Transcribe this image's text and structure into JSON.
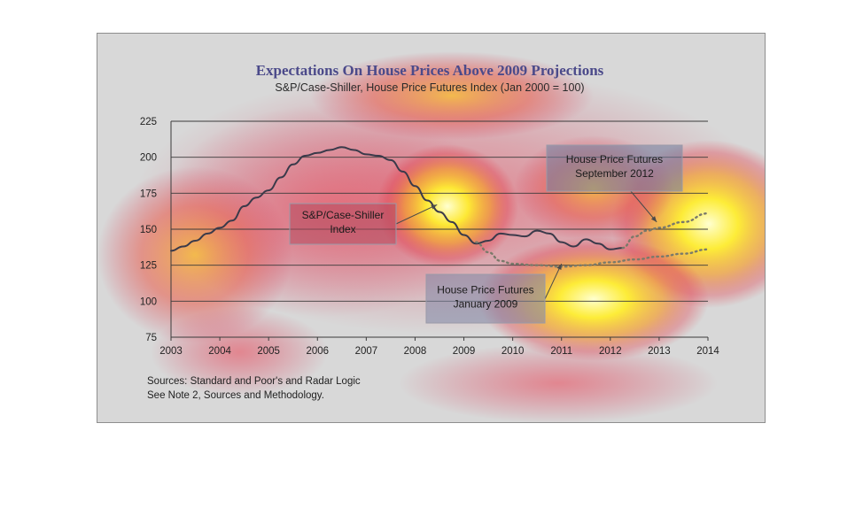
{
  "chart_data": {
    "type": "line",
    "title": "Expectations On House Prices Above 2009 Projections",
    "subtitle": "S&P/Case-Shiller, House Price Futures Index (Jan 2000 = 100)",
    "xlim": [
      2003,
      2014
    ],
    "ylim": [
      75,
      225
    ],
    "x_ticks": [
      "2003",
      "2004",
      "2005",
      "2006",
      "2007",
      "2008",
      "2009",
      "2010",
      "2011",
      "2012",
      "2013",
      "2014"
    ],
    "y_ticks": [
      "75",
      "100",
      "125",
      "150",
      "175",
      "200",
      "225"
    ],
    "grid": "horizontal",
    "series": [
      {
        "name": "S&P/Case-Shiller Index",
        "style": "solid",
        "color": "#3a3a4a",
        "points": [
          [
            2003.0,
            135
          ],
          [
            2003.25,
            138
          ],
          [
            2003.5,
            142
          ],
          [
            2003.75,
            147
          ],
          [
            2004.0,
            151
          ],
          [
            2004.25,
            156
          ],
          [
            2004.5,
            166
          ],
          [
            2004.75,
            172
          ],
          [
            2005.0,
            177
          ],
          [
            2005.25,
            186
          ],
          [
            2005.5,
            195
          ],
          [
            2005.75,
            201
          ],
          [
            2006.0,
            203
          ],
          [
            2006.25,
            205
          ],
          [
            2006.5,
            207
          ],
          [
            2006.75,
            205
          ],
          [
            2007.0,
            202
          ],
          [
            2007.25,
            201
          ],
          [
            2007.5,
            198
          ],
          [
            2007.75,
            190
          ],
          [
            2008.0,
            180
          ],
          [
            2008.25,
            170
          ],
          [
            2008.5,
            162
          ],
          [
            2008.75,
            155
          ],
          [
            2009.0,
            146
          ],
          [
            2009.25,
            140
          ],
          [
            2009.5,
            142
          ],
          [
            2009.75,
            147
          ],
          [
            2010.0,
            146
          ],
          [
            2010.25,
            145
          ],
          [
            2010.5,
            149
          ],
          [
            2010.75,
            147
          ],
          [
            2011.0,
            141
          ],
          [
            2011.25,
            138
          ],
          [
            2011.5,
            143
          ],
          [
            2011.75,
            140
          ],
          [
            2012.0,
            136
          ],
          [
            2012.25,
            137
          ]
        ]
      },
      {
        "name": "House Price Futures September 2012",
        "style": "dotted",
        "color": "#7a7a6a",
        "points": [
          [
            2012.25,
            137
          ],
          [
            2012.5,
            145
          ],
          [
            2012.75,
            149
          ],
          [
            2013.0,
            151
          ],
          [
            2013.5,
            155
          ],
          [
            2014.0,
            161
          ]
        ]
      },
      {
        "name": "House Price Futures January 2009",
        "style": "dotted",
        "color": "#7a7a6a",
        "points": [
          [
            2009.25,
            141
          ],
          [
            2009.5,
            134
          ],
          [
            2009.75,
            128
          ],
          [
            2010.0,
            126
          ],
          [
            2010.5,
            125
          ],
          [
            2011.0,
            124
          ],
          [
            2011.5,
            125
          ],
          [
            2012.0,
            127
          ],
          [
            2012.5,
            129
          ],
          [
            2013.0,
            131
          ],
          [
            2013.5,
            133
          ],
          [
            2014.0,
            136
          ]
        ]
      }
    ],
    "annotations": [
      {
        "id": "case-shiller",
        "lines": [
          "S&P/Case-Shiller",
          "Index"
        ],
        "pointer": [
          2008.45,
          167
        ]
      },
      {
        "id": "futures-2012",
        "lines": [
          "House Price Futures",
          "September 2012"
        ],
        "pointer": [
          2012.95,
          155
        ]
      },
      {
        "id": "futures-2009",
        "lines": [
          "House Price Futures",
          "January 2009"
        ],
        "pointer": [
          2011.0,
          126
        ]
      }
    ],
    "notes": [
      "Sources:  Standard and Poor's and Radar Logic",
      "See Note 2, Sources and Methodology."
    ]
  }
}
